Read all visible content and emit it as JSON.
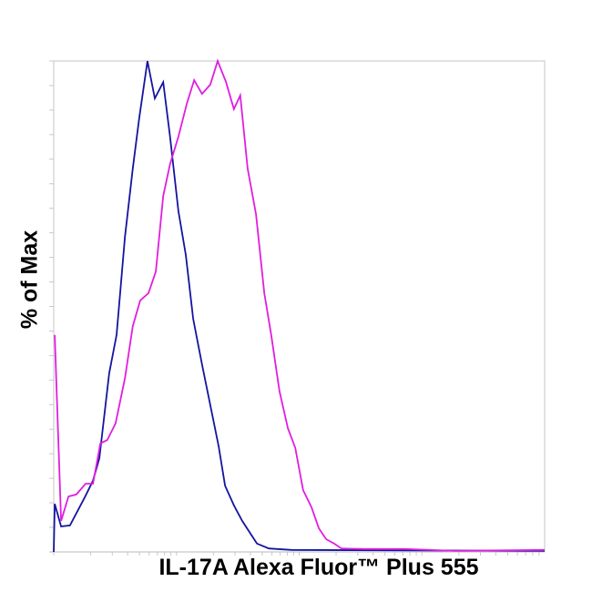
{
  "chart_data": {
    "type": "line",
    "title": "",
    "xlabel": "IL-17A Alexa Fluor™ Plus 555",
    "ylabel": "% of Max",
    "xlim": [
      0,
      100
    ],
    "ylim": [
      0,
      100
    ],
    "x_scale": "log (unlabeled ticks)",
    "y_tick_step": 5,
    "grid": false,
    "legend": "none",
    "series": [
      {
        "color": "#1414a0",
        "points": [
          [
            0,
            0
          ],
          [
            0.2,
            9.8
          ],
          [
            1.5,
            5.2
          ],
          [
            3.3,
            5.4
          ],
          [
            6.3,
            11.1
          ],
          [
            8.0,
            14.5
          ],
          [
            9.3,
            19.1
          ],
          [
            11.3,
            36.4
          ],
          [
            12.8,
            44.2
          ],
          [
            14.5,
            64.2
          ],
          [
            16.1,
            78.1
          ],
          [
            17.4,
            88.3
          ],
          [
            19.1,
            100
          ],
          [
            20.6,
            92.4
          ],
          [
            22.3,
            95.7
          ],
          [
            23.7,
            84.6
          ],
          [
            25.4,
            69.4
          ],
          [
            26.9,
            60.5
          ],
          [
            28.4,
            47.5
          ],
          [
            30.2,
            38.2
          ],
          [
            31.9,
            29.9
          ],
          [
            33.6,
            21.5
          ],
          [
            34.9,
            13.5
          ],
          [
            36.7,
            9.5
          ],
          [
            38.4,
            6.3
          ],
          [
            41.4,
            1.7
          ],
          [
            43.8,
            0.7
          ],
          [
            48.4,
            0.4
          ],
          [
            100,
            0.2
          ]
        ]
      },
      {
        "color": "#e01ee0",
        "points": [
          [
            0.2,
            44.2
          ],
          [
            1.5,
            6.3
          ],
          [
            3.0,
            11.3
          ],
          [
            4.6,
            11.7
          ],
          [
            6.5,
            13.9
          ],
          [
            8.0,
            13.9
          ],
          [
            9.5,
            22.1
          ],
          [
            10.9,
            22.8
          ],
          [
            12.6,
            26.2
          ],
          [
            14.5,
            35.4
          ],
          [
            16.1,
            46.0
          ],
          [
            17.6,
            51.2
          ],
          [
            19.3,
            52.7
          ],
          [
            20.8,
            57.1
          ],
          [
            22.3,
            72.5
          ],
          [
            23.7,
            79.0
          ],
          [
            25.4,
            84.6
          ],
          [
            27.1,
            91.3
          ],
          [
            28.6,
            96.1
          ],
          [
            30.2,
            93.3
          ],
          [
            31.9,
            95.2
          ],
          [
            33.4,
            100
          ],
          [
            35.1,
            95.7
          ],
          [
            36.7,
            90.2
          ],
          [
            38.0,
            93.0
          ],
          [
            39.5,
            78.1
          ],
          [
            41.2,
            68.8
          ],
          [
            42.9,
            52.7
          ],
          [
            44.3,
            44.2
          ],
          [
            46.0,
            32.7
          ],
          [
            47.7,
            25.2
          ],
          [
            49.2,
            21.2
          ],
          [
            50.8,
            12.6
          ],
          [
            52.5,
            9.1
          ],
          [
            54.0,
            4.8
          ],
          [
            55.5,
            2.6
          ],
          [
            57.1,
            1.7
          ],
          [
            58.6,
            0.7
          ],
          [
            63.3,
            0.6
          ],
          [
            71.6,
            0.6
          ],
          [
            81.8,
            0.2
          ],
          [
            100,
            0.4
          ]
        ]
      }
    ]
  }
}
